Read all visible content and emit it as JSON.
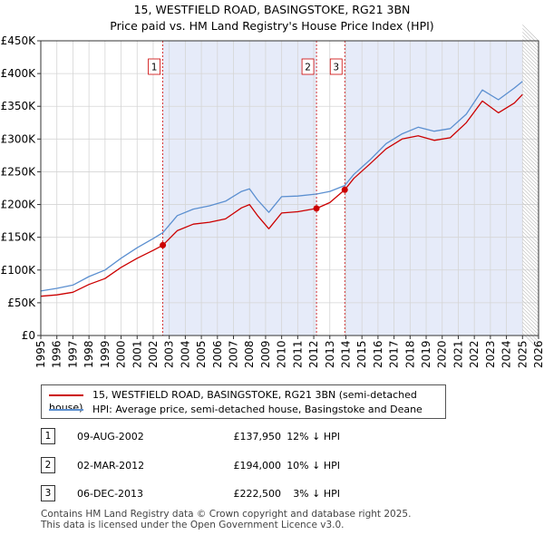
{
  "header": {
    "title_line1": "15, WESTFIELD ROAD, BASINGSTOKE, RG21 3BN",
    "title_line2": "Price paid vs. HM Land Registry's House Price Index (HPI)"
  },
  "chart_data": {
    "type": "line",
    "title": "15, WESTFIELD ROAD, BASINGSTOKE, RG21 3BN — Price paid vs. HM Land Registry's House Price Index (HPI)",
    "xlabel": "",
    "ylabel": "",
    "xlim": [
      1995,
      2026
    ],
    "ylim": [
      0,
      450000
    ],
    "x_ticks": [
      1995,
      1996,
      1997,
      1998,
      1999,
      2000,
      2001,
      2002,
      2003,
      2004,
      2005,
      2006,
      2007,
      2008,
      2009,
      2010,
      2011,
      2012,
      2013,
      2014,
      2015,
      2016,
      2017,
      2018,
      2019,
      2020,
      2021,
      2022,
      2023,
      2024,
      2025,
      2026
    ],
    "y_ticks": [
      {
        "value": 0,
        "label": "£0"
      },
      {
        "value": 50000,
        "label": "£50K"
      },
      {
        "value": 100000,
        "label": "£100K"
      },
      {
        "value": 150000,
        "label": "£150K"
      },
      {
        "value": 200000,
        "label": "£200K"
      },
      {
        "value": 250000,
        "label": "£250K"
      },
      {
        "value": 300000,
        "label": "£300K"
      },
      {
        "value": 350000,
        "label": "£350K"
      },
      {
        "value": 400000,
        "label": "£400K"
      },
      {
        "value": 450000,
        "label": "£450K"
      }
    ],
    "grid": true,
    "shaded_ranges": [
      [
        2002.6,
        2012.17
      ],
      [
        2013.93,
        2025.0
      ]
    ],
    "forecast_start": 2025.0,
    "series": [
      {
        "name": "15, WESTFIELD ROAD, BASINGSTOKE, RG21 3BN (semi-detached house)",
        "color": "#cc0000",
        "x": [
          1995.0,
          1996.0,
          1997.0,
          1998.0,
          1999.0,
          2000.0,
          2001.0,
          2002.0,
          2002.6,
          2003.5,
          2004.5,
          2005.5,
          2006.5,
          2007.5,
          2008.0,
          2008.5,
          2009.2,
          2010.0,
          2011.0,
          2012.17,
          2013.0,
          2013.93,
          2014.5,
          2015.5,
          2016.5,
          2017.5,
          2018.5,
          2019.5,
          2020.5,
          2021.5,
          2022.5,
          2023.5,
          2024.5,
          2025.0
        ],
        "y": [
          60000,
          62000,
          66000,
          78000,
          87000,
          104000,
          118000,
          130000,
          137950,
          160000,
          170000,
          173000,
          178000,
          195000,
          200000,
          183000,
          163000,
          187000,
          189000,
          194000,
          203000,
          222500,
          240000,
          262000,
          285000,
          300000,
          305000,
          298000,
          302000,
          325000,
          358000,
          340000,
          355000,
          368000
        ]
      },
      {
        "name": "HPI: Average price, semi-detached house, Basingstoke and Deane",
        "color": "#5b8fd0",
        "x": [
          1995.0,
          1996.0,
          1997.0,
          1998.0,
          1999.0,
          2000.0,
          2001.0,
          2002.0,
          2002.6,
          2003.5,
          2004.5,
          2005.5,
          2006.5,
          2007.5,
          2008.0,
          2008.5,
          2009.2,
          2010.0,
          2011.0,
          2012.17,
          2013.0,
          2013.93,
          2014.5,
          2015.5,
          2016.5,
          2017.5,
          2018.5,
          2019.5,
          2020.5,
          2021.5,
          2022.5,
          2023.5,
          2024.5,
          2025.0
        ],
        "y": [
          68000,
          72000,
          77000,
          90000,
          100000,
          118000,
          134000,
          148000,
          157000,
          183000,
          193000,
          198000,
          205000,
          220000,
          224000,
          207000,
          188000,
          212000,
          213000,
          216000,
          220000,
          229000,
          246000,
          268000,
          293000,
          308000,
          318000,
          312000,
          316000,
          338000,
          375000,
          360000,
          378000,
          388000
        ]
      }
    ],
    "annotations": [
      {
        "label": "1",
        "x": 2002.6,
        "y": 137950
      },
      {
        "label": "2",
        "x": 2012.17,
        "y": 194000
      },
      {
        "label": "3",
        "x": 2013.93,
        "y": 222500
      }
    ]
  },
  "legend": {
    "property_label": "15, WESTFIELD ROAD, BASINGSTOKE, RG21 3BN (semi-detached house)",
    "hpi_label": "HPI: Average price, semi-detached house, Basingstoke and Deane"
  },
  "sales": [
    {
      "num": "1",
      "date": "09-AUG-2002",
      "price": "£137,950",
      "hpi": "12% ↓ HPI"
    },
    {
      "num": "2",
      "date": "02-MAR-2012",
      "price": "£194,000",
      "hpi": "10% ↓ HPI"
    },
    {
      "num": "3",
      "date": "06-DEC-2013",
      "price": "£222,500",
      "hpi": "3% ↓ HPI"
    }
  ],
  "footer": {
    "line1": "Contains HM Land Registry data © Crown copyright and database right 2025.",
    "line2": "This data is licensed under the Open Government Licence v3.0."
  },
  "colors": {
    "property": "#cc0000",
    "hpi": "#5b8fd0",
    "shade": "#e6ebf9",
    "grid": "#d5d5d5"
  }
}
